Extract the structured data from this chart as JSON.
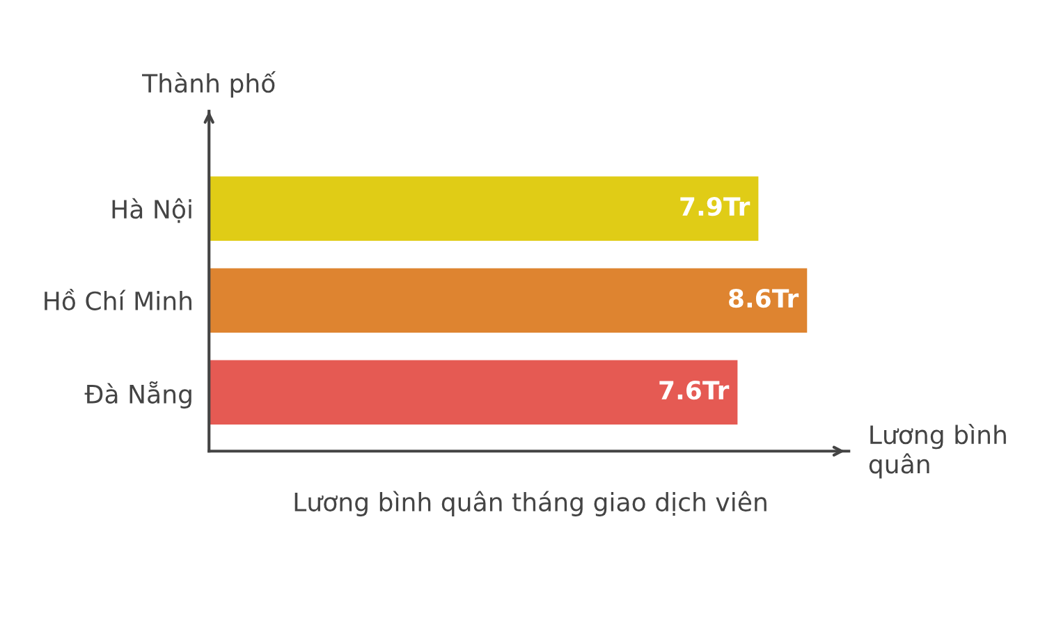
{
  "chart_data": {
    "type": "bar",
    "orientation": "horizontal",
    "categories": [
      "Hà Nội",
      "Hồ Chí Minh",
      "Đà Nẵng"
    ],
    "values": [
      7.9,
      8.6,
      7.6
    ],
    "colors": [
      "#e0cc16",
      "#de8430",
      "#e55a53"
    ],
    "value_labels": [
      "7.9Tr",
      "8.6Tr",
      "7.6Tr"
    ],
    "xlim": [
      0,
      9.2
    ],
    "tick_labels": "y",
    "ylabel": "Thành phố",
    "xlabel": "Lương bình\nquân",
    "annotations": [
      "Lương bình quân tháng giao dịch viên"
    ]
  }
}
